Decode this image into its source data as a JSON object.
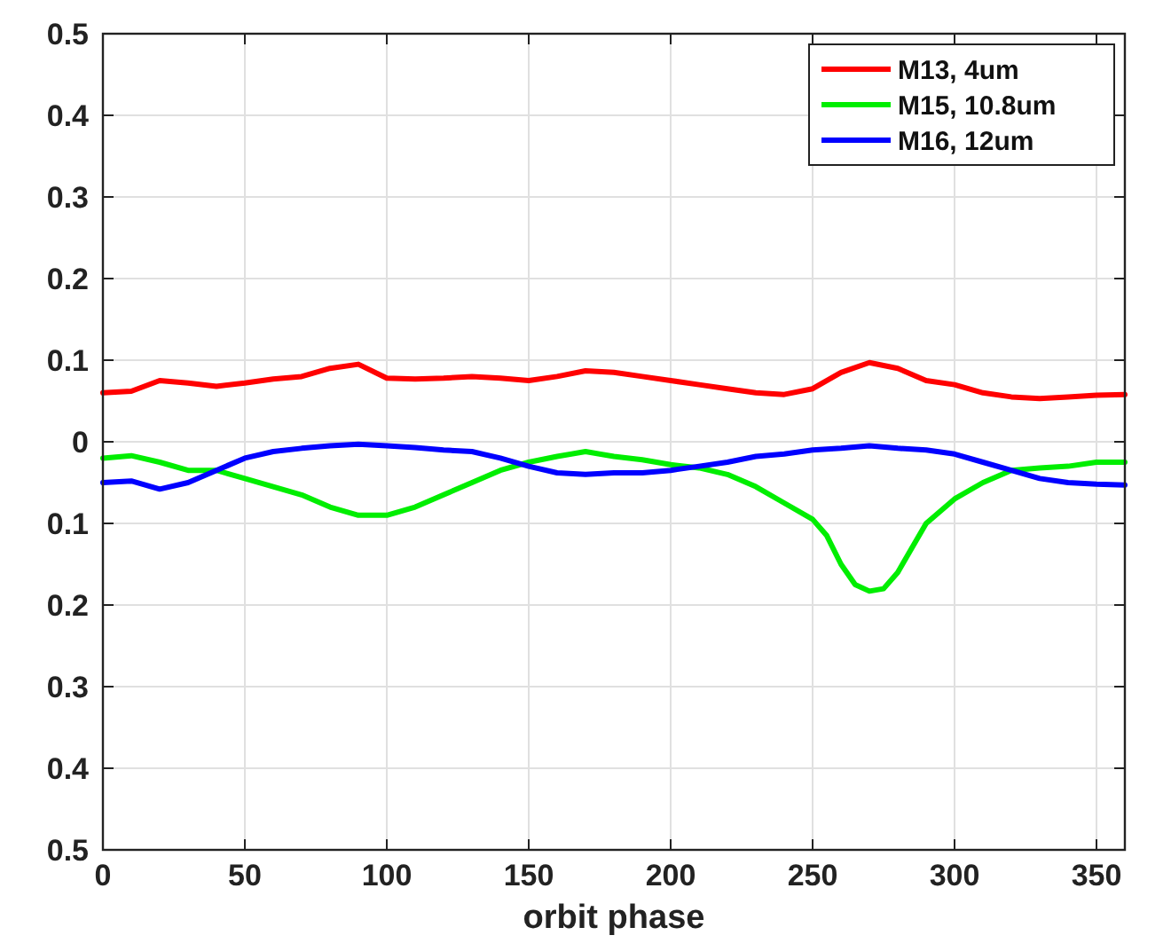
{
  "chart_data": {
    "type": "line",
    "xlabel": "orbit phase",
    "xlim": [
      0,
      360
    ],
    "xticks": [
      0,
      50,
      100,
      150,
      200,
      250,
      300,
      350
    ],
    "ylim": [
      -0.5,
      0.5
    ],
    "yticks": [
      {
        "value": -0.5,
        "label": "0.5"
      },
      {
        "value": -0.4,
        "label": "0.4"
      },
      {
        "value": -0.3,
        "label": "0.3"
      },
      {
        "value": -0.2,
        "label": "0.2"
      },
      {
        "value": -0.1,
        "label": "0.1"
      },
      0,
      0.1,
      0.2,
      0.3,
      0.4,
      0.5
    ],
    "grid": true,
    "legend": "top right",
    "line_style": "solid",
    "series": [
      {
        "name": "M13, 4um",
        "color": "#ff0000",
        "x": [
          0,
          10,
          20,
          30,
          40,
          50,
          60,
          70,
          80,
          90,
          100,
          110,
          120,
          130,
          140,
          150,
          160,
          170,
          180,
          190,
          200,
          210,
          220,
          230,
          240,
          250,
          260,
          270,
          280,
          290,
          300,
          310,
          320,
          330,
          340,
          350,
          360
        ],
        "values": [
          0.06,
          0.062,
          0.075,
          0.072,
          0.068,
          0.072,
          0.077,
          0.08,
          0.09,
          0.095,
          0.078,
          0.077,
          0.078,
          0.08,
          0.078,
          0.075,
          0.08,
          0.087,
          0.085,
          0.08,
          0.075,
          0.07,
          0.065,
          0.06,
          0.058,
          0.065,
          0.085,
          0.097,
          0.09,
          0.075,
          0.07,
          0.06,
          0.055,
          0.053,
          0.055,
          0.057,
          0.058
        ]
      },
      {
        "name": "M15, 10.8um",
        "color": "#00ee00",
        "x": [
          0,
          10,
          20,
          30,
          40,
          50,
          60,
          70,
          80,
          90,
          100,
          110,
          120,
          130,
          140,
          150,
          160,
          170,
          180,
          190,
          200,
          210,
          220,
          230,
          240,
          250,
          255,
          260,
          265,
          270,
          275,
          280,
          285,
          290,
          300,
          310,
          320,
          330,
          340,
          350,
          360
        ],
        "values": [
          -0.02,
          -0.017,
          -0.025,
          -0.035,
          -0.035,
          -0.045,
          -0.055,
          -0.065,
          -0.08,
          -0.09,
          -0.09,
          -0.08,
          -0.065,
          -0.05,
          -0.035,
          -0.025,
          -0.018,
          -0.012,
          -0.018,
          -0.022,
          -0.028,
          -0.032,
          -0.04,
          -0.055,
          -0.075,
          -0.095,
          -0.115,
          -0.15,
          -0.175,
          -0.183,
          -0.18,
          -0.16,
          -0.13,
          -0.1,
          -0.07,
          -0.05,
          -0.035,
          -0.032,
          -0.03,
          -0.025,
          -0.025
        ]
      },
      {
        "name": "M16, 12um",
        "color": "#0000ff",
        "x": [
          0,
          10,
          20,
          30,
          40,
          50,
          60,
          70,
          80,
          90,
          100,
          110,
          120,
          130,
          140,
          150,
          160,
          170,
          180,
          190,
          200,
          210,
          220,
          230,
          240,
          250,
          260,
          270,
          280,
          290,
          300,
          310,
          320,
          330,
          340,
          350,
          360
        ],
        "values": [
          -0.05,
          -0.048,
          -0.058,
          -0.05,
          -0.035,
          -0.02,
          -0.012,
          -0.008,
          -0.005,
          -0.003,
          -0.005,
          -0.007,
          -0.01,
          -0.012,
          -0.02,
          -0.03,
          -0.038,
          -0.04,
          -0.038,
          -0.038,
          -0.035,
          -0.03,
          -0.025,
          -0.018,
          -0.015,
          -0.01,
          -0.008,
          -0.005,
          -0.008,
          -0.01,
          -0.015,
          -0.025,
          -0.035,
          -0.045,
          -0.05,
          -0.052,
          -0.053
        ]
      }
    ]
  }
}
